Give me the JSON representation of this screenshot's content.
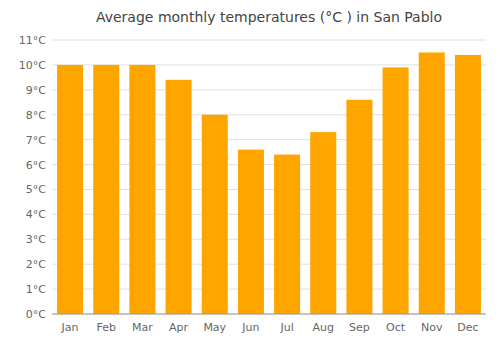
{
  "chart_data": {
    "type": "bar",
    "title": "Average monthly temperatures (°C ) in San Pablo",
    "categories": [
      "Jan",
      "Feb",
      "Mar",
      "Apr",
      "May",
      "Jun",
      "Jul",
      "Aug",
      "Sep",
      "Oct",
      "Nov",
      "Dec"
    ],
    "values": [
      10.0,
      10.0,
      10.0,
      9.4,
      8.0,
      6.6,
      6.4,
      7.3,
      8.6,
      9.9,
      10.5,
      10.4
    ],
    "color": "#FFA500",
    "ylim": [
      0,
      11
    ],
    "yticks": [
      {
        "value": 0,
        "label": "0°C"
      },
      {
        "value": 1,
        "label": "1°C"
      },
      {
        "value": 2,
        "label": "2°C"
      },
      {
        "value": 3,
        "label": "3°C"
      },
      {
        "value": 4,
        "label": "4°C"
      },
      {
        "value": 5,
        "label": "5°C"
      },
      {
        "value": 6,
        "label": "6°C"
      },
      {
        "value": 7,
        "label": "7°C"
      },
      {
        "value": 8,
        "label": "8°C"
      },
      {
        "value": 9,
        "label": "9°C"
      },
      {
        "value": 10,
        "label": "10°C"
      },
      {
        "value": 11,
        "label": "11°C"
      }
    ],
    "grid": true
  }
}
